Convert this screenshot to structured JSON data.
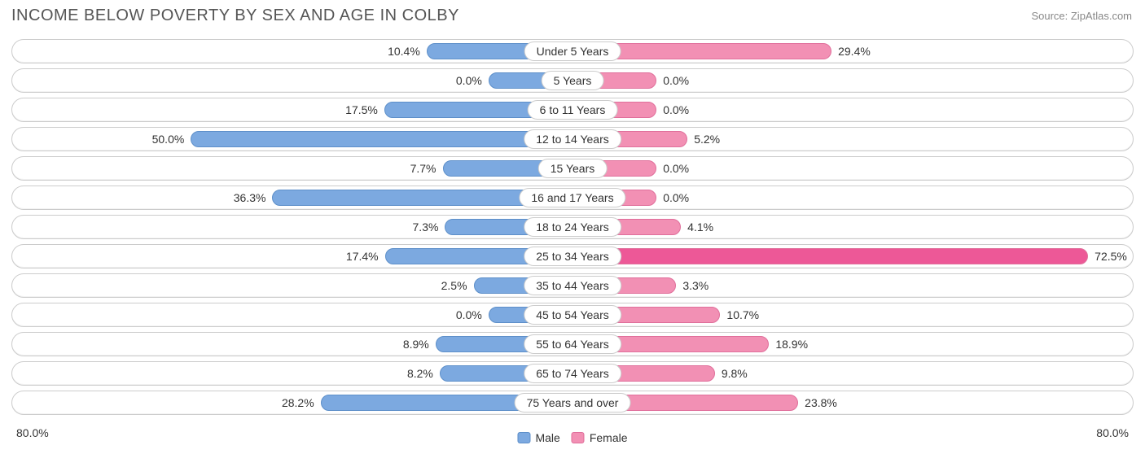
{
  "title": "INCOME BELOW POVERTY BY SEX AND AGE IN COLBY",
  "source": "Source: ZipAtlas.com",
  "chart": {
    "type": "diverging-bar",
    "axis_max": 80.0,
    "axis_label_left": "80.0%",
    "axis_label_right": "80.0%",
    "bar_base_width_pct": 15.0,
    "male_color": "#7ca9e0",
    "male_border": "#5d8fc9",
    "female_color": "#f290b4",
    "female_color_highlight": "#ed5897",
    "female_border": "#e06f9b",
    "track_border": "#cccccc",
    "track_bg": "#ffffff",
    "label_bg": "#ffffff",
    "label_border": "#cccccc",
    "text_color": "#333333",
    "title_color": "#555555",
    "source_color": "#888888",
    "title_fontsize": 20,
    "label_fontsize": 14,
    "rows": [
      {
        "age": "Under 5 Years",
        "male": 10.4,
        "female": 29.4,
        "male_label": "10.4%",
        "female_label": "29.4%",
        "highlight": false
      },
      {
        "age": "5 Years",
        "male": 0.0,
        "female": 0.0,
        "male_label": "0.0%",
        "female_label": "0.0%",
        "highlight": false
      },
      {
        "age": "6 to 11 Years",
        "male": 17.5,
        "female": 0.0,
        "male_label": "17.5%",
        "female_label": "0.0%",
        "highlight": false
      },
      {
        "age": "12 to 14 Years",
        "male": 50.0,
        "female": 5.2,
        "male_label": "50.0%",
        "female_label": "5.2%",
        "highlight": false
      },
      {
        "age": "15 Years",
        "male": 7.7,
        "female": 0.0,
        "male_label": "7.7%",
        "female_label": "0.0%",
        "highlight": false
      },
      {
        "age": "16 and 17 Years",
        "male": 36.3,
        "female": 0.0,
        "male_label": "36.3%",
        "female_label": "0.0%",
        "highlight": false
      },
      {
        "age": "18 to 24 Years",
        "male": 7.3,
        "female": 4.1,
        "male_label": "7.3%",
        "female_label": "4.1%",
        "highlight": false
      },
      {
        "age": "25 to 34 Years",
        "male": 17.4,
        "female": 72.5,
        "male_label": "17.4%",
        "female_label": "72.5%",
        "highlight": true
      },
      {
        "age": "35 to 44 Years",
        "male": 2.5,
        "female": 3.3,
        "male_label": "2.5%",
        "female_label": "3.3%",
        "highlight": false
      },
      {
        "age": "45 to 54 Years",
        "male": 0.0,
        "female": 10.7,
        "male_label": "0.0%",
        "female_label": "10.7%",
        "highlight": false
      },
      {
        "age": "55 to 64 Years",
        "male": 8.9,
        "female": 18.9,
        "male_label": "8.9%",
        "female_label": "18.9%",
        "highlight": false
      },
      {
        "age": "65 to 74 Years",
        "male": 8.2,
        "female": 9.8,
        "male_label": "8.2%",
        "female_label": "9.8%",
        "highlight": false
      },
      {
        "age": "75 Years and over",
        "male": 28.2,
        "female": 23.8,
        "male_label": "28.2%",
        "female_label": "23.8%",
        "highlight": false
      }
    ],
    "legend": {
      "male": "Male",
      "female": "Female"
    }
  }
}
